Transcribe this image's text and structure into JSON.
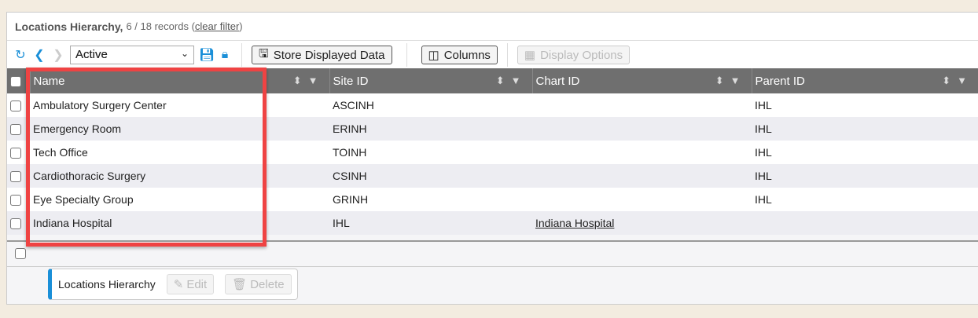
{
  "header": {
    "title": "Locations Hierarchy,",
    "count": "6 / 18 records",
    "open_paren": "(",
    "clear_filter": "clear filter",
    "close_paren": ")"
  },
  "toolbar": {
    "filter_value": "Active",
    "filter_options": [
      "Active"
    ],
    "store_label": "Store Displayed Data",
    "columns_label": "Columns",
    "display_options_label": "Display Options"
  },
  "columns": [
    "Name",
    "Site ID",
    "Chart ID",
    "Parent ID"
  ],
  "rows": [
    {
      "name": "Ambulatory Surgery Center",
      "site_id": "ASCINH",
      "chart_id": "",
      "parent_id": "IHL"
    },
    {
      "name": "Emergency Room",
      "site_id": "ERINH",
      "chart_id": "",
      "parent_id": "IHL"
    },
    {
      "name": "Tech Office",
      "site_id": "TOINH",
      "chart_id": "",
      "parent_id": "IHL"
    },
    {
      "name": "Cardiothoracic Surgery",
      "site_id": "CSINH",
      "chart_id": "",
      "parent_id": "IHL"
    },
    {
      "name": "Eye Specialty Group",
      "site_id": "GRINH",
      "chart_id": "",
      "parent_id": "IHL"
    },
    {
      "name": "Indiana Hospital",
      "site_id": "IHL",
      "chart_id": "Indiana Hospital",
      "parent_id": ""
    }
  ],
  "footer": {
    "record_title": "Locations Hierarchy",
    "edit_label": "Edit",
    "delete_label": "Delete"
  },
  "colors": {
    "accent": "#1a8fd8",
    "highlight": "#ef4343",
    "header_bg": "#6f6f6f"
  }
}
